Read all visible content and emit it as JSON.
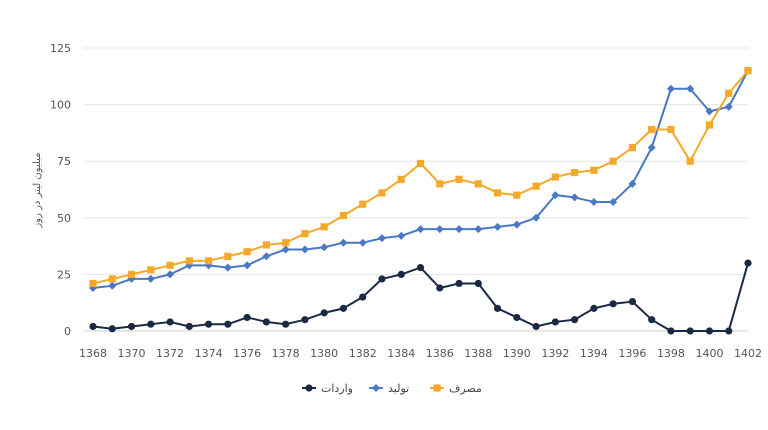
{
  "chart_data": {
    "type": "line",
    "ylabel": "میلیون لیتر در روز",
    "ylim": [
      0,
      125
    ],
    "yticks": [
      0,
      25,
      50,
      75,
      100,
      125
    ],
    "x": [
      1368,
      1369,
      1370,
      1371,
      1372,
      1373,
      1374,
      1375,
      1376,
      1377,
      1378,
      1379,
      1380,
      1381,
      1382,
      1383,
      1384,
      1385,
      1386,
      1387,
      1388,
      1389,
      1390,
      1391,
      1392,
      1393,
      1394,
      1395,
      1396,
      1397,
      1398,
      1399,
      1400,
      1401,
      1402
    ],
    "xtick_labels": [
      "1368",
      "1370",
      "1372",
      "1374",
      "1376",
      "1378",
      "1380",
      "1382",
      "1384",
      "1386",
      "1388",
      "1390",
      "1392",
      "1394",
      "1396",
      "1398",
      "1400",
      "1402"
    ],
    "grid": true,
    "legend_position": "bottom",
    "series": [
      {
        "name": "واردات",
        "color": "#1b2a44",
        "marker": "circle",
        "values": [
          2,
          1,
          2,
          3,
          4,
          2,
          3,
          3,
          6,
          4,
          3,
          5,
          8,
          10,
          15,
          23,
          25,
          28,
          19,
          21,
          21,
          10,
          6,
          2,
          4,
          5,
          10,
          12,
          13,
          5,
          0,
          0,
          0,
          0,
          30
        ]
      },
      {
        "name": "تولید",
        "color": "#4a78c2",
        "marker": "diamond",
        "values": [
          19,
          20,
          23,
          23,
          25,
          29,
          29,
          28,
          29,
          33,
          36,
          36,
          37,
          39,
          39,
          41,
          42,
          45,
          45,
          45,
          45,
          46,
          47,
          50,
          60,
          59,
          57,
          57,
          65,
          81,
          107,
          107,
          97,
          99,
          115
        ]
      },
      {
        "name": "مصرف",
        "color": "#f4a92a",
        "marker": "square",
        "values": [
          21,
          23,
          25,
          27,
          29,
          31,
          31,
          33,
          35,
          38,
          39,
          43,
          46,
          51,
          56,
          61,
          67,
          74,
          65,
          67,
          65,
          61,
          60,
          64,
          68,
          70,
          71,
          75,
          81,
          89,
          89,
          75,
          91,
          105,
          115
        ]
      }
    ]
  }
}
